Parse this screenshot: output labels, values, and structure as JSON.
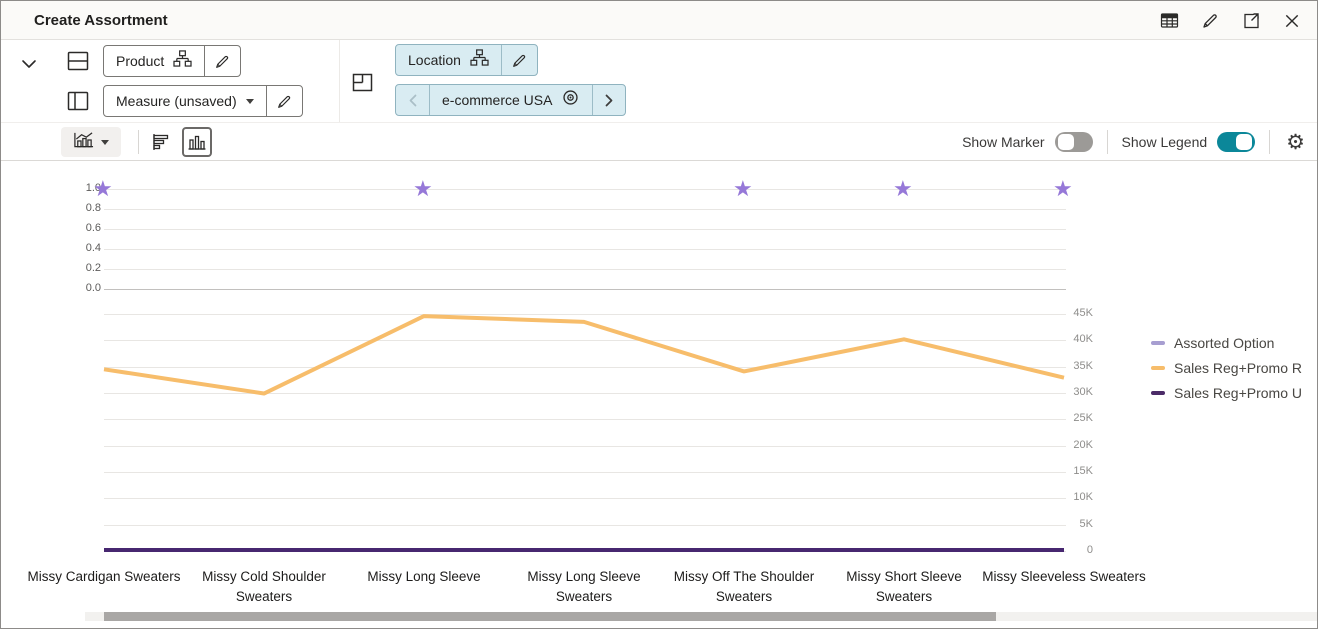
{
  "header": {
    "title": "Create Assortment",
    "icons": [
      "table-view-icon",
      "edit-icon",
      "open-in-new-icon",
      "close-icon"
    ]
  },
  "controls": {
    "product": {
      "label": "Product"
    },
    "measure": {
      "label": "Measure (unsaved)"
    },
    "location": {
      "label": "Location"
    },
    "channel": {
      "label": "e-commerce USA"
    }
  },
  "toolbar": {
    "show_marker_label": "Show Marker",
    "show_marker_on": false,
    "show_legend_label": "Show Legend",
    "show_legend_on": true,
    "selected_chart_type": "vertical-bar"
  },
  "colors": {
    "accent_teal": "#0b8799",
    "chip_blue": "#d9ecf2",
    "star_purple": "#9678d8",
    "line_yellow": "#f7bd6b",
    "line_dark_purple": "#472770"
  },
  "chart_data": {
    "type": "line",
    "categories": [
      "Missy Cardigan Sweaters",
      "Missy Cold Shoulder Sweaters",
      "Missy Long Sleeve",
      "Missy Long Sleeve Sweaters",
      "Missy Off The Shoulder Sweaters",
      "Missy Short Sleeve Sweaters",
      "Missy Sleeveless Sweaters"
    ],
    "series": [
      {
        "name": "Assorted Option",
        "axis": "left",
        "marker": "star",
        "color": "#9678d8",
        "legend_color": "#a79ed1",
        "values": [
          1,
          0,
          1,
          0,
          1,
          1,
          1
        ]
      },
      {
        "name": "Sales Reg+Promo R",
        "axis": "right",
        "color": "#f7bd6b",
        "legend_color": "#f7bd6b",
        "values": [
          34500,
          29900,
          44600,
          43500,
          34100,
          40200,
          32900
        ]
      },
      {
        "name": "Sales Reg+Promo U",
        "axis": "right",
        "color": "#472770",
        "legend_color": "#4b2b68",
        "values": [
          0,
          0,
          0,
          0,
          0,
          0,
          0
        ]
      }
    ],
    "left_axis": {
      "min": 0,
      "max": 1,
      "tick_labels": [
        "1.0",
        "0.8",
        "0.6",
        "0.4",
        "0.2",
        "0.0"
      ]
    },
    "right_axis": {
      "min": 0,
      "max": 45000,
      "tick_labels": [
        "45K",
        "40K",
        "35K",
        "30K",
        "25K",
        "20K",
        "15K",
        "10K",
        "5K",
        "0"
      ],
      "tick_values": [
        45000,
        40000,
        35000,
        30000,
        25000,
        20000,
        15000,
        10000,
        5000,
        0
      ]
    },
    "legend": {
      "position": "right",
      "entries": [
        "Assorted Option",
        "Sales Reg+Promo R",
        "Sales Reg+Promo U"
      ]
    },
    "grid": true,
    "title": ""
  }
}
